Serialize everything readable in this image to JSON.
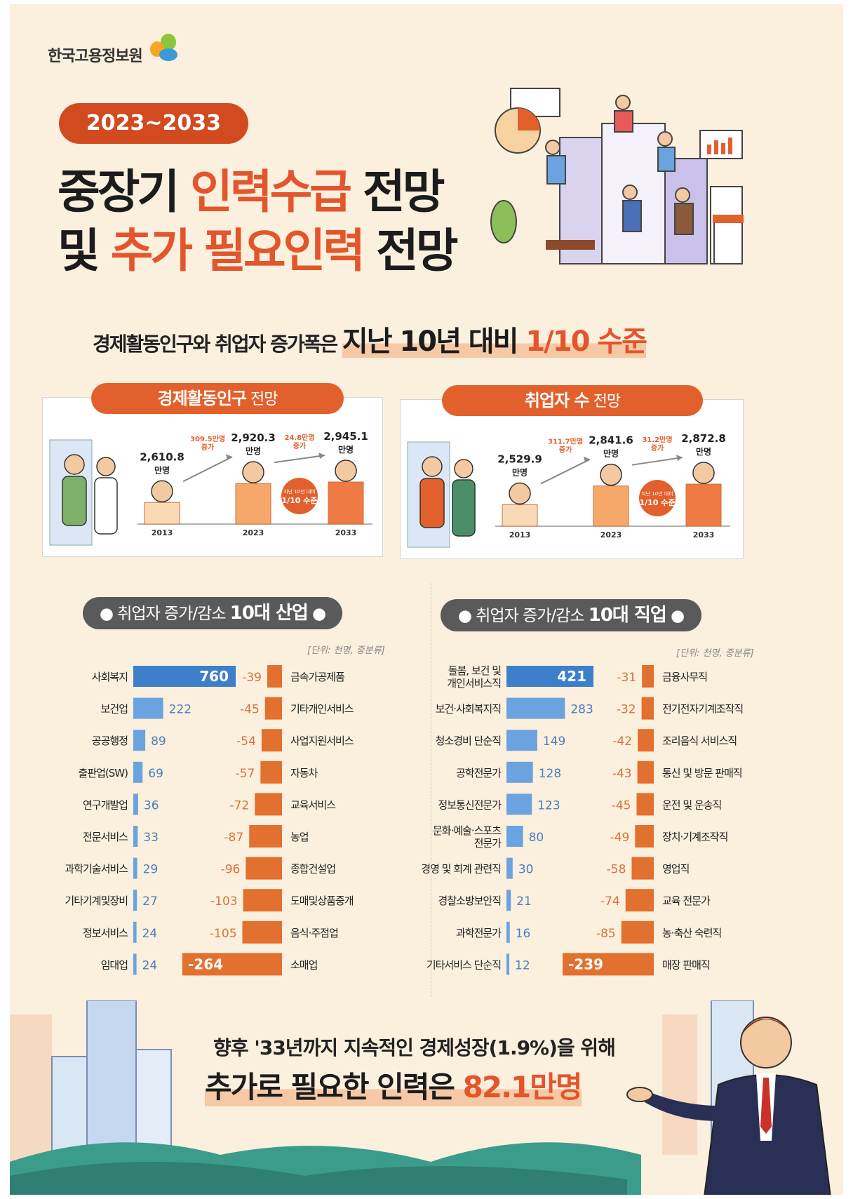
{
  "header": {
    "org_name": "한국고용정보원",
    "period": "2023~2033"
  },
  "title": {
    "line1": {
      "a": "중장기 ",
      "b": "인력수급",
      "c": " 전망"
    },
    "line2": {
      "a": "및 ",
      "b": "추가 필요인력",
      "c": " 전망"
    }
  },
  "subtitle": {
    "lead": "경제활동인구와 취업자 증가폭은 ",
    "emph": "지난 10년 대비 ",
    "ratio": "1/10 수준"
  },
  "colors": {
    "orange": "#e2602c",
    "blue": "#3d7fcb",
    "light_blue": "#6aa3df",
    "cream": "#fbefde"
  },
  "panels": [
    {
      "pill_main": "경제활동인구",
      "pill_sub": " 전망",
      "years": [
        "2013",
        "2023",
        "2033"
      ],
      "values": [
        2610.8,
        2920.3,
        2945.1
      ],
      "value_labels": [
        "2,610.8",
        "2,920.3",
        "2,945.1"
      ],
      "unit": "만명",
      "increases": [
        {
          "value": "309.5만명",
          "label": "증가"
        },
        {
          "value": "24.8만명",
          "label": "증가"
        }
      ],
      "badge": [
        "지난 10년 대비",
        "1/10 수준"
      ]
    },
    {
      "pill_main": "취업자 수",
      "pill_sub": " 전망",
      "years": [
        "2013",
        "2023",
        "2033"
      ],
      "values": [
        2529.9,
        2841.6,
        2872.8
      ],
      "value_labels": [
        "2,529.9",
        "2,841.6",
        "2,872.8"
      ],
      "unit": "만명",
      "increases": [
        {
          "value": "311.7만명",
          "label": "증가"
        },
        {
          "value": "31.2만명",
          "label": "증가"
        }
      ],
      "badge": [
        "지난 10년 대비",
        "1/10 수준"
      ]
    }
  ],
  "chart_data": [
    {
      "type": "bar",
      "title_pre": "취업자 증가/감소 ",
      "title_bold": "10대 산업",
      "unit_note": "[단위: 천명, 중분류]",
      "increase": {
        "categories": [
          "사회복지",
          "보건업",
          "공공행정",
          "출판업(SW)",
          "연구개발업",
          "전문서비스",
          "과학기술서비스",
          "기타기계및장비",
          "정보서비스",
          "임대업"
        ],
        "values": [
          760,
          222,
          89,
          69,
          36,
          33,
          29,
          27,
          24,
          24
        ]
      },
      "decrease": {
        "categories": [
          "금속가공제품",
          "기타개인서비스",
          "사업지원서비스",
          "자동차",
          "교육서비스",
          "농업",
          "종합건설업",
          "도매및상품중개",
          "음식·주점업",
          "소매업"
        ],
        "values": [
          -39,
          -45,
          -54,
          -57,
          -72,
          -87,
          -96,
          -103,
          -105,
          -264
        ]
      }
    },
    {
      "type": "bar",
      "title_pre": "취업자 증가/감소 ",
      "title_bold": "10대 직업",
      "unit_note": "[단위: 천명, 중분류]",
      "increase": {
        "categories": [
          "돌봄, 보건 및\n개인서비스직",
          "보건·사회복지직",
          "청소경비 단순직",
          "공학전문가",
          "정보통신전문가",
          "문화·예술·스포츠\n전문가",
          "경영 및 회계 관련직",
          "경찰소방보안직",
          "과학전문가",
          "기타서비스 단순직"
        ],
        "values": [
          421,
          283,
          149,
          128,
          123,
          80,
          30,
          21,
          16,
          12
        ]
      },
      "decrease": {
        "categories": [
          "금융사무직",
          "전기전자기계조작직",
          "조리음식 서비스직",
          "통신 및 방문 판매직",
          "운전 및 운송직",
          "장치·기계조작직",
          "영업직",
          "교육 전문가",
          "농·축산 숙련직",
          "매장 판매직"
        ],
        "values": [
          -31,
          -32,
          -42,
          -43,
          -45,
          -49,
          -58,
          -74,
          -85,
          -239
        ]
      }
    }
  ],
  "footer": {
    "line1": "향후 '33년까지 지속적인 경제성장(1.9%)을 위해",
    "line2_a": "추가로 필요한 인력은 ",
    "line2_b": "82.1만명"
  }
}
